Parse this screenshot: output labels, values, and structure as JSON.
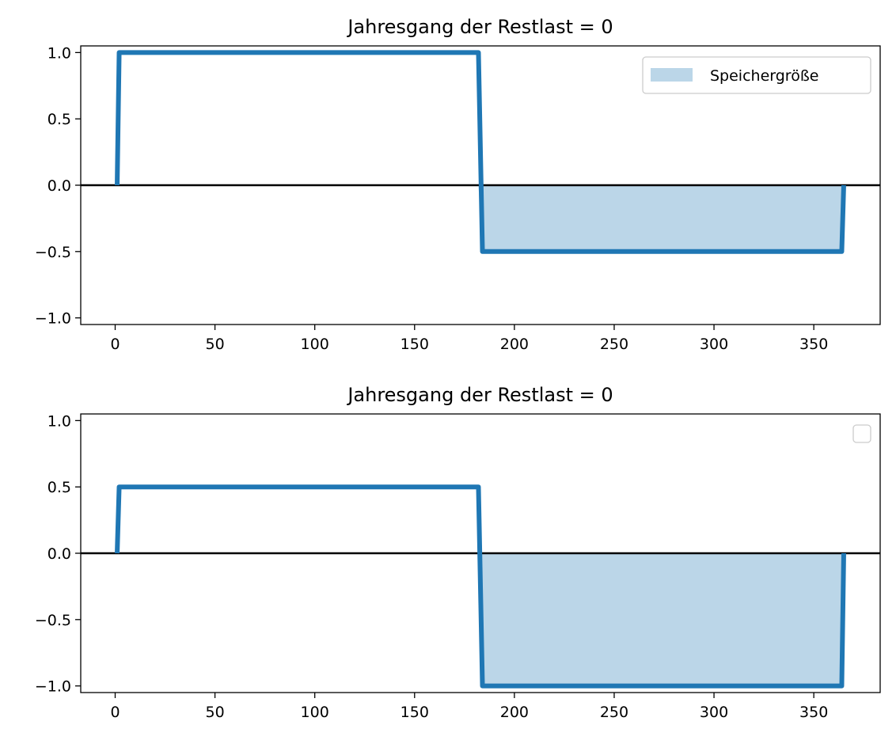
{
  "chart_data": [
    {
      "type": "line",
      "title": "Jahresgang der Restlast = 0",
      "xlabel": "",
      "ylabel": "",
      "xlim": [
        -17.25,
        383.25
      ],
      "ylim": [
        -1.05,
        1.05
      ],
      "xticks": [
        0,
        50,
        100,
        150,
        200,
        250,
        300,
        350
      ],
      "yticks": [
        -1.0,
        -0.5,
        0.0,
        0.5,
        1.0
      ],
      "ytick_labels": [
        "−1.0",
        "−0.5",
        "0.0",
        "0.5",
        "1.0"
      ],
      "grid": false,
      "zero_line": true,
      "series": [
        {
          "x": [
            1,
            2,
            182,
            184,
            364,
            365
          ],
          "y": [
            0,
            1.0,
            1.0,
            -0.5,
            -0.5,
            0
          ],
          "color": "#1f77b4"
        }
      ],
      "fill": {
        "name": "Speichergröße",
        "x": [
          182,
          184,
          364,
          365
        ],
        "y": [
          0,
          -0.5,
          -0.5,
          0
        ],
        "color": "#1f77b4",
        "alpha": 0.3
      },
      "legend": {
        "placement": "upper right",
        "entries": [
          {
            "label": "Speichergröße",
            "color": "#1f77b4",
            "kind": "patch"
          }
        ]
      }
    },
    {
      "type": "line",
      "title": "Jahresgang der Restlast = 0",
      "xlabel": "",
      "ylabel": "",
      "xlim": [
        -17.25,
        383.25
      ],
      "ylim": [
        -1.05,
        1.05
      ],
      "xticks": [
        0,
        50,
        100,
        150,
        200,
        250,
        300,
        350
      ],
      "yticks": [
        -1.0,
        -0.5,
        0.0,
        0.5,
        1.0
      ],
      "ytick_labels": [
        "−1.0",
        "−0.5",
        "0.0",
        "0.5",
        "1.0"
      ],
      "grid": false,
      "zero_line": true,
      "series": [
        {
          "x": [
            1,
            2,
            182,
            184,
            364,
            365
          ],
          "y": [
            0,
            0.5,
            0.5,
            -1.0,
            -1.0,
            0
          ],
          "color": "#1f77b4"
        }
      ],
      "fill": {
        "x": [
          182,
          184,
          364,
          365
        ],
        "y": [
          0,
          -1.0,
          -1.0,
          0
        ],
        "color": "#1f77b4",
        "alpha": 0.3
      },
      "legend": {
        "placement": "upper right",
        "entries": []
      }
    }
  ]
}
